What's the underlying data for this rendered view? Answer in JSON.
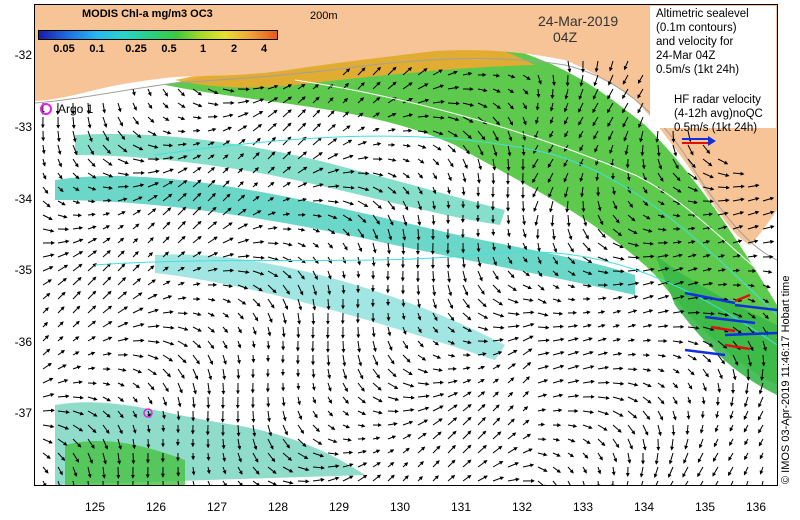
{
  "colorbar": {
    "title": "MODIS Chl-a mg/m3 OC3",
    "labels": [
      "0.05",
      "0.1",
      "0.25",
      "0.5",
      "1",
      "2",
      "4"
    ]
  },
  "contour_note": "200m",
  "date": "24-Mar-2019",
  "time": "04Z",
  "legend": {
    "altimetric_lines": [
      "Altimetric sealevel",
      "(0.1m contours)",
      "and velocity for",
      "24-Mar 04Z",
      "0.5m/s (1kt 24h)"
    ],
    "hf_lines": [
      "HF radar velocity",
      "(4-12h avg)noQC",
      "0.5m/s (1kt 24h)"
    ]
  },
  "argo_label": "Argo 1",
  "axes": {
    "lat_ticks": [
      "-32",
      "-33",
      "-34",
      "-35",
      "-36",
      "-37"
    ],
    "lon_ticks": [
      "125",
      "126",
      "127",
      "128",
      "129",
      "130",
      "131",
      "132",
      "133",
      "134",
      "135",
      "136"
    ]
  },
  "credit": "© IMOS 03-Apr-2019 11:46:17 Hobart time",
  "colors": {
    "land": "#f6c496",
    "hf_blue": "#1030e0",
    "hf_red": "#e01010",
    "argo": "#e020e0"
  }
}
